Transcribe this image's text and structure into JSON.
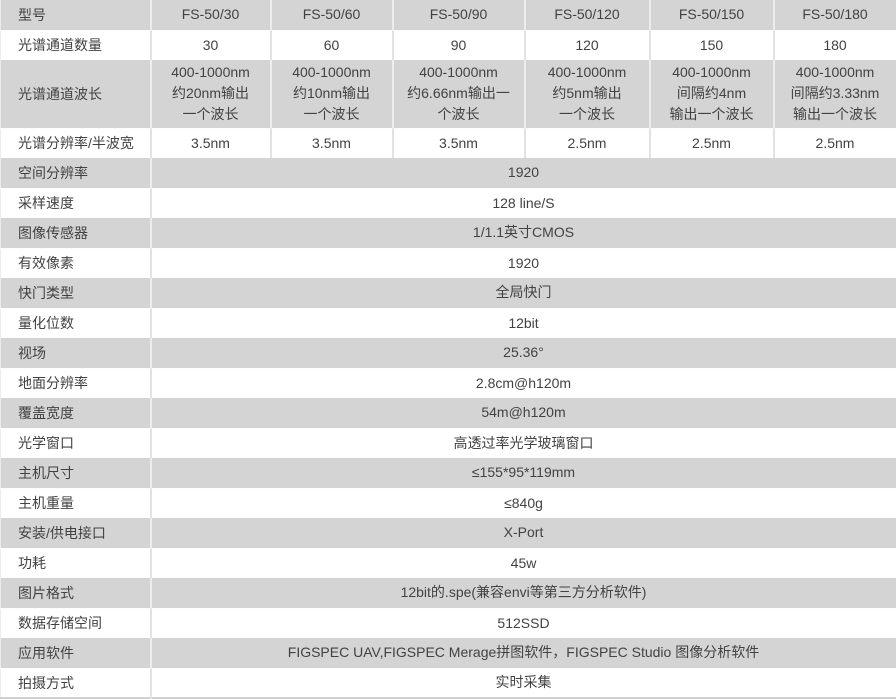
{
  "table": {
    "header": {
      "label": "型号",
      "models": [
        "FS-50/30",
        "FS-50/60",
        "FS-50/90",
        "FS-50/120",
        "FS-50/150",
        "FS-50/180"
      ]
    },
    "per_model_rows": [
      {
        "label": "光谱通道数量",
        "values": [
          "30",
          "60",
          "90",
          "120",
          "150",
          "180"
        ]
      },
      {
        "label": "光谱通道波长",
        "values": [
          "400-1000nm\n约20nm输出\n一个波长",
          "400-1000nm\n约10nm输出\n一个波长",
          "400-1000nm\n约6.66nm输出一\n个波长",
          "400-1000nm\n约5nm输出\n一个波长",
          "400-1000nm\n间隔约4nm\n输出一个波长",
          "400-1000nm\n间隔约3.33nm\n输出一个波长"
        ]
      },
      {
        "label": "光谱分辨率/半波宽",
        "values": [
          "3.5nm",
          "3.5nm",
          "3.5nm",
          "2.5nm",
          "2.5nm",
          "2.5nm"
        ]
      }
    ],
    "merged_rows": [
      {
        "label": "空间分辨率",
        "value": "1920"
      },
      {
        "label": "采样速度",
        "value": "128 line/S"
      },
      {
        "label": "图像传感器",
        "value": "1/1.1英寸CMOS"
      },
      {
        "label": "有效像素",
        "value": "1920"
      },
      {
        "label": "快门类型",
        "value": "全局快门"
      },
      {
        "label": "量化位数",
        "value": "12bit"
      },
      {
        "label": "视场",
        "value": "25.36°"
      },
      {
        "label": "地面分辨率",
        "value": "2.8cm@h120m"
      },
      {
        "label": "覆盖宽度",
        "value": "54m@h120m"
      },
      {
        "label": "光学窗口",
        "value": "高透过率光学玻璃窗口"
      },
      {
        "label": "主机尺寸",
        "value": "≤155*95*119mm"
      },
      {
        "label": "主机重量",
        "value": "≤840g"
      },
      {
        "label": "安装/供电接口",
        "value": "X-Port"
      },
      {
        "label": "功耗",
        "value": "45w"
      },
      {
        "label": "图片格式",
        "value": "12bit的.spe(兼容envi等第三方分析软件)"
      },
      {
        "label": "数据存储空间",
        "value": "512SSD"
      },
      {
        "label": "应用软件",
        "value": "FIGSPEC UAV,FIGSPEC Merage拼图软件，FIGSPEC Studio 图像分析软件"
      },
      {
        "label": "拍摄方式",
        "value": "实时采集"
      }
    ],
    "colors": {
      "shaded_row_bg": "#d4d4d4",
      "white_row_bg": "#ffffff",
      "text": "#424242",
      "divider_on_white": "#e2e2e2",
      "divider_on_gray": "#ededed"
    }
  }
}
